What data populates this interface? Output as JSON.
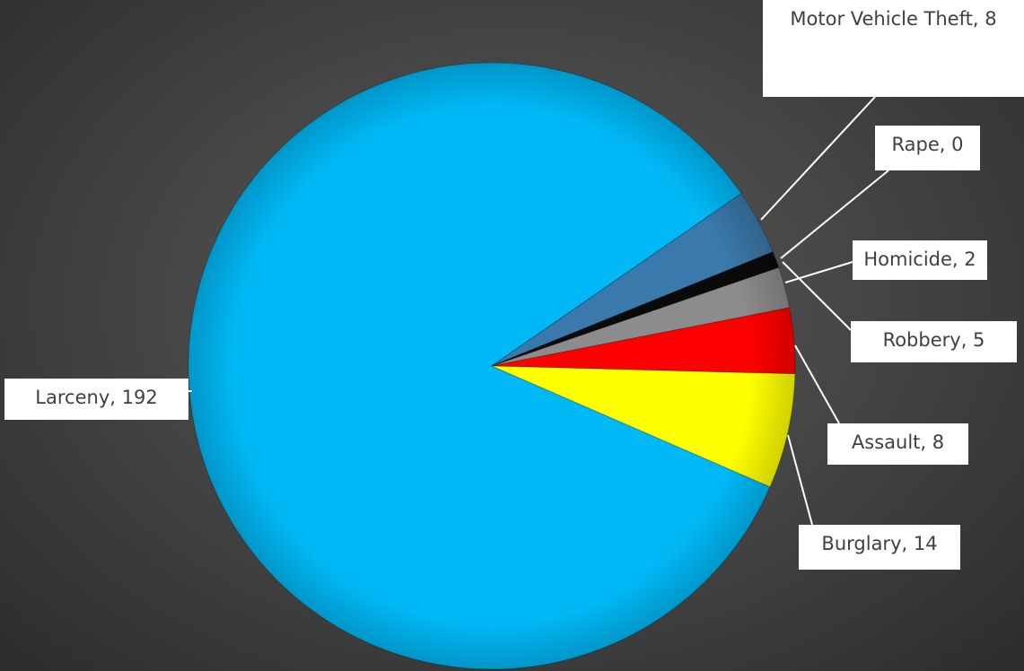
{
  "chart_data": {
    "type": "pie",
    "labels": [
      "Larceny, 192",
      "Motor Vehicle Theft, 8",
      "Rape, 0",
      "Homicide, 2",
      "Robbery, 5",
      "Assault, 8",
      "Burglary, 14"
    ],
    "values": [
      192,
      8,
      0,
      2,
      5,
      8,
      14
    ],
    "colors": [
      "#00b8f5",
      "#3a79ab",
      "#1e4ea0",
      "#0a0a0a",
      "#8c8c8c",
      "#ff0000",
      "#ffff00"
    ]
  }
}
